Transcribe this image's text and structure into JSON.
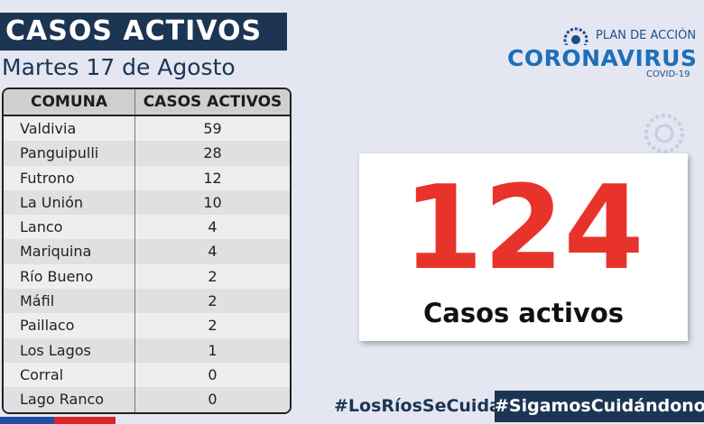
{
  "header": {
    "title": "CASOS ACTIVOS",
    "date": "Martes 17 de Agosto"
  },
  "logo": {
    "top": "PLAN DE ACCIÓN",
    "main": "CORONAVIRUS",
    "sub": "COVID-19"
  },
  "table": {
    "columns": [
      "COMUNA",
      "CASOS ACTIVOS"
    ],
    "rows": [
      [
        "Valdivia",
        59
      ],
      [
        "Panguipulli",
        28
      ],
      [
        "Futrono",
        12
      ],
      [
        "La Unión",
        10
      ],
      [
        "Lanco",
        4
      ],
      [
        "Mariquina",
        4
      ],
      [
        "Río Bueno",
        2
      ],
      [
        "Máfil",
        2
      ],
      [
        "Paillaco",
        2
      ],
      [
        "Los Lagos",
        1
      ],
      [
        "Corral",
        0
      ],
      [
        "Lago Ranco",
        0
      ]
    ]
  },
  "total": {
    "value": 124,
    "label": "Casos activos"
  },
  "hashtags": [
    "#LosRíosSeCuida",
    "#SigamosCuidándonos"
  ]
}
